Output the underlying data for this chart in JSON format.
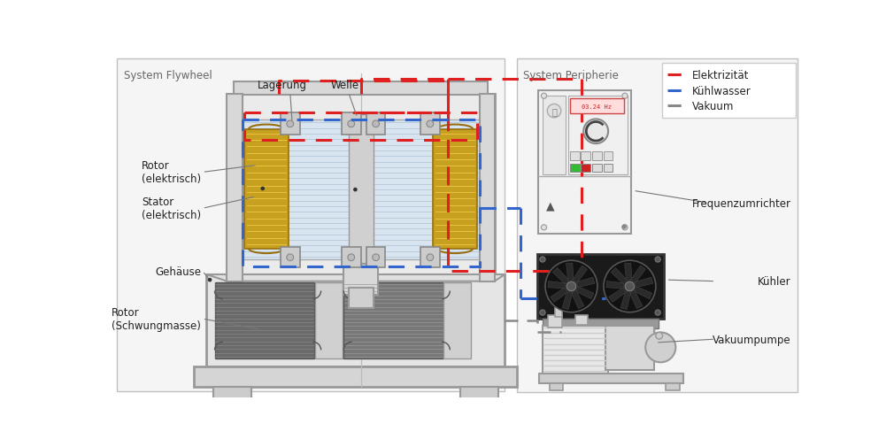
{
  "labels": {
    "system_flywheel": "System Flywheel",
    "system_peripherie": "System Peripherie",
    "lagerung": "Lagerung",
    "welle": "Welle",
    "rotor_el": "Rotor\n(elektrisch)",
    "stator_el": "Stator\n(elektrisch)",
    "gehaeuse": "Gehäuse",
    "rotor_schwung": "Rotor\n(Schwungmasse)",
    "frequenzumrichter": "Frequenzumrichter",
    "kuehler": "Kühler",
    "vakuumpumpe": "Vakuumpumpe",
    "elektrizitaet": "Elektrizität",
    "kuehlwasser": "Kühlwasser",
    "vakuum": "Vakuum"
  },
  "red_color": "#e02020",
  "blue_color": "#3366cc",
  "gray_color": "#888888",
  "coil_color": "#c8a020",
  "housing_color": "#e0e0e0",
  "housing_ec": "#aaaaaa",
  "stator_fill": "#d8e4ee",
  "stator_line": "#b0c4d4"
}
